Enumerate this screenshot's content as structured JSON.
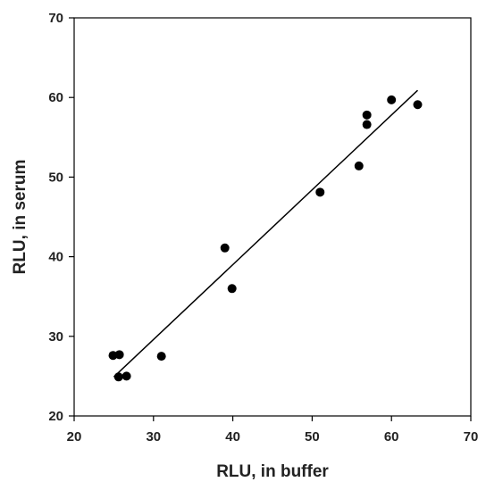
{
  "chart_data": {
    "type": "scatter",
    "title": "",
    "xlabel": "RLU, in buffer",
    "ylabel": "RLU, in serum",
    "xlim": [
      20,
      70
    ],
    "ylim": [
      20,
      70
    ],
    "xticks": [
      "20",
      "30",
      "40",
      "50",
      "60",
      "70"
    ],
    "yticks": [
      "20",
      "30",
      "40",
      "50",
      "60",
      "70"
    ],
    "grid": false,
    "legend": "none",
    "series": [
      {
        "points": [
          {
            "x": 24.9,
            "y": 27.6
          },
          {
            "x": 25.7,
            "y": 27.7
          },
          {
            "x": 25.6,
            "y": 24.9
          },
          {
            "x": 26.6,
            "y": 25.0
          },
          {
            "x": 31.0,
            "y": 27.5
          },
          {
            "x": 39.0,
            "y": 41.1
          },
          {
            "x": 39.9,
            "y": 36.0
          },
          {
            "x": 51.0,
            "y": 48.1
          },
          {
            "x": 55.9,
            "y": 51.4
          },
          {
            "x": 56.9,
            "y": 57.8
          },
          {
            "x": 56.9,
            "y": 56.6
          },
          {
            "x": 60.0,
            "y": 59.7
          },
          {
            "x": 63.3,
            "y": 59.1
          }
        ]
      }
    ],
    "fit_line": {
      "x": [
        25.0,
        63.3
      ],
      "y": [
        24.9,
        60.9
      ]
    },
    "colors": {
      "marker": "#000000",
      "line": "#000000",
      "axis": "#000000"
    }
  }
}
